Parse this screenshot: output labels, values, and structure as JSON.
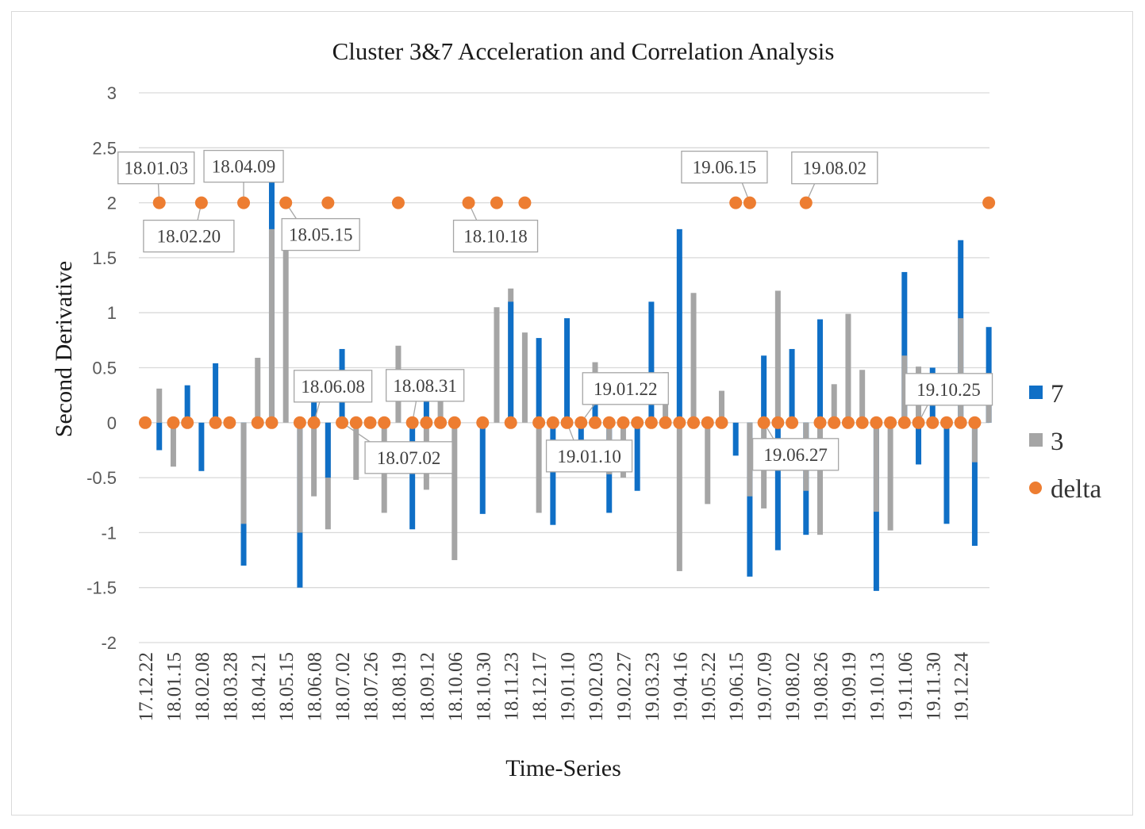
{
  "chart_data": {
    "type": "bar",
    "title": "Cluster 3&7 Acceleration and Correlation Analysis",
    "xlabel": "Time-Series",
    "ylabel": "Second Derivative",
    "ylim": [
      -2,
      3
    ],
    "yticks": [
      "3",
      "2.5",
      "2",
      "1.5",
      "1",
      "0.5",
      "0",
      "-0.5",
      "-1",
      "-1.5",
      "-2"
    ],
    "ytick_values": [
      3,
      2.5,
      2,
      1.5,
      1,
      0.5,
      0,
      -0.5,
      -1,
      -1.5,
      -2
    ],
    "grid": true,
    "legend_position": "right",
    "x_tick_labels": [
      "17.12.22",
      "18.01.15",
      "18.02.08",
      "18.03.28",
      "18.04.21",
      "18.05.15",
      "18.06.08",
      "18.07.02",
      "18.07.26",
      "18.08.19",
      "18.09.12",
      "18.10.06",
      "18.10.30",
      "18.11.23",
      "18.12.17",
      "19.01.10",
      "19.02.03",
      "19.02.27",
      "19.03.23",
      "19.04.16",
      "19.05.22",
      "19.06.15",
      "19.07.09",
      "19.08.02",
      "19.08.26",
      "19.09.19",
      "19.10.13",
      "19.11.06",
      "19.11.30",
      "19.12.24"
    ],
    "x_tick_every": 2,
    "series": [
      {
        "name": "7",
        "color": "#0f6fc6",
        "values": [
          0,
          -0.25,
          0,
          0.34,
          -0.44,
          0.54,
          0,
          -1.3,
          0,
          2.2,
          0,
          -1.5,
          0.37,
          -0.5,
          0.67,
          0,
          0,
          0,
          0,
          -0.97,
          0.39,
          0,
          0,
          0,
          -0.83,
          0,
          1.1,
          0,
          0.77,
          -0.93,
          0.95,
          -0.43,
          0.33,
          -0.82,
          0,
          -0.62,
          1.1,
          0,
          1.76,
          0,
          0,
          0,
          -0.3,
          -1.4,
          0.61,
          -1.16,
          0.67,
          -1.02,
          0.94,
          0,
          0,
          0,
          -1.53,
          0,
          1.37,
          -0.38,
          0.5,
          -0.92,
          1.66,
          -1.12,
          0.87
        ]
      },
      {
        "name": "3",
        "color": "#a5a5a5",
        "values": [
          0,
          0.31,
          -0.4,
          0,
          0,
          0,
          0,
          -0.92,
          0.59,
          1.76,
          1.6,
          -1.0,
          -0.67,
          -0.97,
          0,
          -0.52,
          0,
          -0.82,
          0.7,
          0,
          -0.61,
          0.3,
          -1.25,
          0,
          0,
          1.05,
          1.22,
          0.82,
          -0.82,
          0,
          0,
          0,
          0.55,
          -0.47,
          -0.5,
          0,
          0,
          0.46,
          -1.35,
          1.18,
          -0.74,
          0.29,
          0,
          -0.67,
          -0.78,
          1.2,
          0,
          -0.62,
          -1.02,
          0.35,
          0.99,
          0.48,
          -0.81,
          -0.98,
          0.61,
          0.51,
          0,
          0,
          0.95,
          -0.36,
          0.31
        ]
      }
    ],
    "delta": {
      "name": "delta",
      "color": "#ed7d31",
      "values": [
        0,
        2,
        0,
        0,
        2,
        0,
        0,
        2,
        0,
        0,
        2,
        0,
        0,
        2,
        0,
        0,
        0,
        0,
        2,
        0,
        0,
        0,
        0,
        2,
        0,
        2,
        0,
        2,
        0,
        0,
        0,
        0,
        0,
        0,
        0,
        0,
        0,
        0,
        0,
        0,
        0,
        0,
        2,
        2,
        0,
        0,
        0,
        2,
        0,
        0,
        0,
        0,
        0,
        0,
        0,
        0,
        0,
        0,
        0,
        0,
        2
      ]
    },
    "annotations": [
      {
        "label": "18.01.03",
        "index": 1
      },
      {
        "label": "18.02.20",
        "index": 4
      },
      {
        "label": "18.04.09",
        "index": 7
      },
      {
        "label": "18.05.15",
        "index": 10
      },
      {
        "label": "18.06.08",
        "index": 12
      },
      {
        "label": "18.07.02",
        "index": 14
      },
      {
        "label": "18.08.31",
        "index": 19
      },
      {
        "label": "18.10.18",
        "index": 23
      },
      {
        "label": "19.01.10",
        "index": 30
      },
      {
        "label": "19.01.22",
        "index": 31
      },
      {
        "label": "19.06.15",
        "index": 43
      },
      {
        "label": "19.06.27",
        "index": 44
      },
      {
        "label": "19.08.02",
        "index": 47
      },
      {
        "label": "19.10.25",
        "index": 55
      }
    ]
  }
}
